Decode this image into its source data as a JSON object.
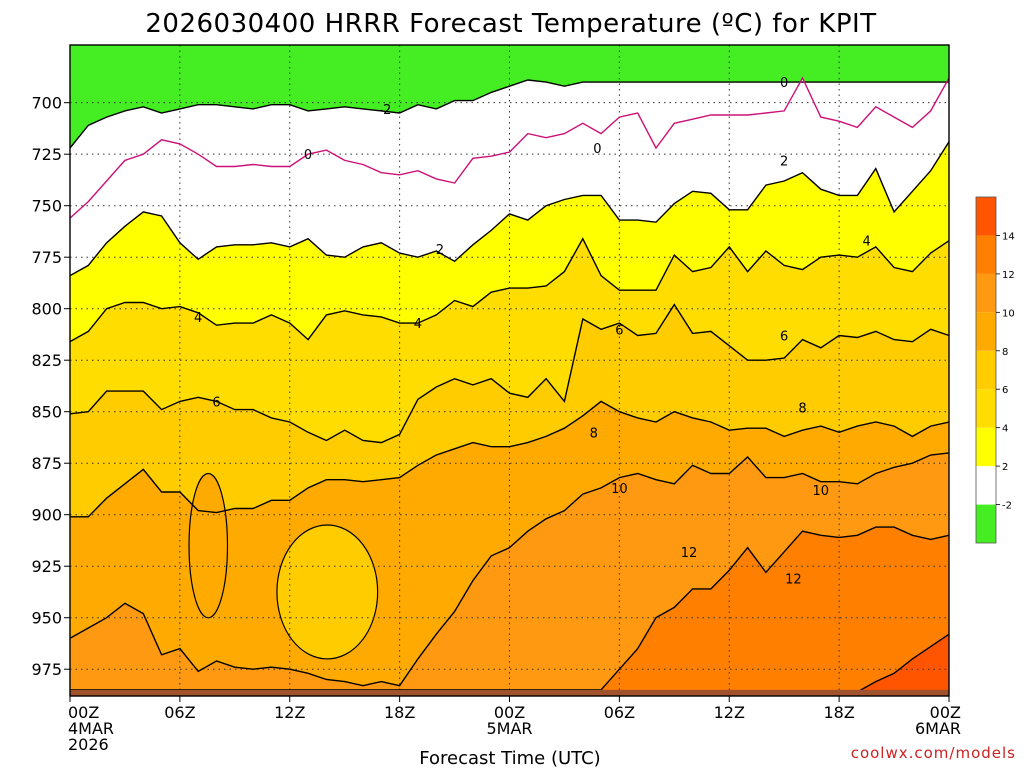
{
  "chart_data": {
    "type": "contour",
    "title": "2026030400 HRRR Forecast Temperature (ºC) for KPIT",
    "xlabel": "Forecast Time (UTC)",
    "ylabel": "",
    "x_range_hours": [
      0,
      48
    ],
    "y_range_hpa": [
      672,
      988
    ],
    "y_direction": "pressure decreasing upward",
    "yticks": [
      700,
      725,
      750,
      775,
      800,
      825,
      850,
      875,
      900,
      925,
      950,
      975
    ],
    "xticks": [
      {
        "hour": 0,
        "line1": "00Z",
        "line2": "4MAR",
        "line3": "2026"
      },
      {
        "hour": 6,
        "line1": "06Z",
        "line2": "",
        "line3": ""
      },
      {
        "hour": 12,
        "line1": "12Z",
        "line2": "",
        "line3": ""
      },
      {
        "hour": 18,
        "line1": "18Z",
        "line2": "",
        "line3": ""
      },
      {
        "hour": 24,
        "line1": "00Z",
        "line2": "5MAR",
        "line3": ""
      },
      {
        "hour": 30,
        "line1": "06Z",
        "line2": "",
        "line3": ""
      },
      {
        "hour": 36,
        "line1": "12Z",
        "line2": "",
        "line3": ""
      },
      {
        "hour": 42,
        "line1": "18Z",
        "line2": "",
        "line3": ""
      },
      {
        "hour": 48,
        "line1": "00Z",
        "line2": "6MAR",
        "line3": ""
      }
    ],
    "hours": [
      0,
      1,
      2,
      3,
      4,
      5,
      6,
      7,
      8,
      9,
      10,
      11,
      12,
      13,
      14,
      15,
      16,
      17,
      18,
      19,
      20,
      21,
      22,
      23,
      24,
      25,
      26,
      27,
      28,
      29,
      30,
      31,
      32,
      33,
      34,
      35,
      36,
      37,
      38,
      39,
      40,
      41,
      42,
      43,
      44,
      45,
      46,
      47,
      48
    ],
    "isotherms": [
      {
        "level": -2,
        "color": "#000000",
        "pressure": [
          722,
          711,
          707,
          704,
          702,
          705,
          703,
          701,
          701,
          702,
          703,
          701,
          701,
          704,
          703,
          702,
          703,
          704,
          705,
          701,
          703,
          699,
          699,
          695,
          692,
          689,
          690,
          692,
          690,
          690,
          690,
          690,
          690,
          690,
          690,
          690,
          690,
          690,
          690,
          690,
          690,
          690,
          690,
          690,
          690,
          690,
          690,
          690,
          690
        ]
      },
      {
        "level": 0,
        "color": "#cc1177",
        "pressure": [
          756,
          748,
          738,
          728,
          725,
          718,
          720,
          725,
          731,
          731,
          730,
          731,
          731,
          725,
          723,
          728,
          730,
          734,
          735,
          733,
          737,
          739,
          727,
          726,
          724,
          715,
          717,
          715,
          710,
          715,
          707,
          705,
          722,
          710,
          708,
          706,
          706,
          706,
          705,
          704,
          688,
          707,
          709,
          712,
          702,
          707,
          712,
          704,
          688
        ]
      },
      {
        "level": 2,
        "color": "#000000",
        "pressure": [
          784,
          779,
          768,
          760,
          753,
          755,
          768,
          776,
          770,
          769,
          769,
          768,
          770,
          766,
          774,
          775,
          770,
          768,
          773,
          775,
          772,
          777,
          769,
          762,
          754,
          757,
          750,
          747,
          745,
          745,
          757,
          757,
          758,
          749,
          743,
          744,
          752,
          752,
          740,
          738,
          734,
          742,
          745,
          745,
          732,
          753,
          743,
          733,
          719
        ]
      },
      {
        "level": 4,
        "color": "#000000",
        "pressure": [
          816,
          811,
          800,
          797,
          797,
          800,
          799,
          802,
          808,
          807,
          807,
          803,
          807,
          815,
          803,
          801,
          803,
          804,
          807,
          807,
          803,
          796,
          799,
          792,
          790,
          790,
          789,
          782,
          766,
          784,
          791,
          791,
          791,
          774,
          782,
          780,
          770,
          782,
          772,
          779,
          781,
          775,
          774,
          775,
          770,
          780,
          782,
          773,
          767
        ]
      },
      {
        "level": 6,
        "color": "#000000",
        "pressure": [
          851,
          850,
          840,
          840,
          840,
          849,
          845,
          843,
          845,
          849,
          849,
          853,
          855,
          860,
          864,
          859,
          864,
          865,
          861,
          844,
          838,
          834,
          837,
          834,
          841,
          843,
          834,
          845,
          805,
          810,
          807,
          813,
          812,
          798,
          812,
          811,
          818,
          825,
          825,
          824,
          815,
          819,
          813,
          814,
          811,
          815,
          816,
          810,
          813
        ]
      },
      {
        "level": 8,
        "color": "#000000",
        "pressure": [
          901,
          901,
          892,
          885,
          878,
          889,
          889,
          898,
          899,
          897,
          897,
          893,
          893,
          887,
          883,
          883,
          884,
          883,
          882,
          876,
          871,
          868,
          865,
          867,
          867,
          865,
          862,
          858,
          852,
          845,
          850,
          853,
          855,
          850,
          853,
          855,
          859,
          858,
          858,
          862,
          859,
          857,
          860,
          857,
          855,
          857,
          862,
          857,
          855
        ]
      },
      {
        "level": 10,
        "color": "#000000",
        "pressure": [
          960,
          955,
          950,
          943,
          948,
          968,
          965,
          976,
          971,
          974,
          975,
          974,
          975,
          977,
          980,
          981,
          983,
          981,
          983,
          970,
          958,
          947,
          932,
          920,
          916,
          908,
          902,
          898,
          890,
          887,
          882,
          880,
          883,
          885,
          876,
          880,
          880,
          872,
          882,
          882,
          880,
          884,
          884,
          885,
          880,
          877,
          875,
          871,
          870
        ]
      },
      {
        "level": 12,
        "color": "#000000",
        "pressure": [
          985,
          985,
          985,
          985,
          985,
          985,
          985,
          985,
          985,
          985,
          985,
          985,
          985,
          985,
          985,
          985,
          985,
          985,
          985,
          985,
          985,
          985,
          985,
          985,
          985,
          985,
          985,
          985,
          985,
          985,
          975,
          965,
          950,
          945,
          936,
          936,
          927,
          916,
          928,
          918,
          908,
          910,
          911,
          910,
          906,
          906,
          910,
          912,
          910
        ]
      },
      {
        "level": 14,
        "color": "#000000",
        "pressure": [
          988,
          988,
          988,
          988,
          988,
          988,
          988,
          988,
          988,
          988,
          988,
          988,
          988,
          988,
          988,
          988,
          988,
          988,
          988,
          988,
          988,
          988,
          988,
          988,
          988,
          988,
          988,
          988,
          988,
          988,
          988,
          988,
          988,
          988,
          988,
          988,
          988,
          988,
          988,
          988,
          988,
          988,
          988,
          986,
          981,
          977,
          970,
          964,
          958
        ]
      }
    ],
    "islands": [
      {
        "level": 8,
        "description": "warm pocket near 06Z-09Z",
        "hour_range": [
          6.5,
          8.6
        ],
        "pressure_range": [
          880,
          950
        ]
      },
      {
        "level": 8,
        "description": "cool pocket near 12Z-16Z",
        "hour_range": [
          11.3,
          16.8
        ],
        "pressure_range": [
          905,
          970
        ]
      }
    ],
    "contour_labels": [
      {
        "text": "-2",
        "hour": 17.2,
        "pressure": 703
      },
      {
        "text": "0",
        "hour": 13.0,
        "pressure": 725
      },
      {
        "text": "0",
        "hour": 28.8,
        "pressure": 722
      },
      {
        "text": "0",
        "hour": 39.0,
        "pressure": 690
      },
      {
        "text": "2",
        "hour": 20.2,
        "pressure": 771
      },
      {
        "text": "2",
        "hour": 39.0,
        "pressure": 728
      },
      {
        "text": "4",
        "hour": 7.0,
        "pressure": 804
      },
      {
        "text": "4",
        "hour": 19.0,
        "pressure": 807
      },
      {
        "text": "4",
        "hour": 43.5,
        "pressure": 767
      },
      {
        "text": "6",
        "hour": 8.0,
        "pressure": 845
      },
      {
        "text": "6",
        "hour": 30.0,
        "pressure": 810
      },
      {
        "text": "6",
        "hour": 39.0,
        "pressure": 813
      },
      {
        "text": "8",
        "hour": 28.6,
        "pressure": 860
      },
      {
        "text": "8",
        "hour": 40.0,
        "pressure": 848
      },
      {
        "text": "10",
        "hour": 30.0,
        "pressure": 887
      },
      {
        "text": "10",
        "hour": 41.0,
        "pressure": 888
      },
      {
        "text": "12",
        "hour": 33.8,
        "pressure": 918
      },
      {
        "text": "12",
        "hour": 39.5,
        "pressure": 931
      }
    ],
    "terrain_color": "#a0522d",
    "colorbar": {
      "boundaries": [
        -4,
        -2,
        2,
        4,
        6,
        8,
        10,
        12,
        14,
        16
      ],
      "colors": [
        "#44ee22",
        "#ffffff",
        "#ffff00",
        "#ffdd00",
        "#ffcc00",
        "#ffaa00",
        "#ff9911",
        "#ff7f00",
        "#ff5500"
      ],
      "tick_labels": [
        "-2",
        "2",
        "4",
        "6",
        "8",
        "10",
        "12",
        "14"
      ],
      "tick_values": [
        -2,
        2,
        4,
        6,
        8,
        10,
        12,
        14
      ]
    }
  },
  "credit": "coolwx.com/models"
}
